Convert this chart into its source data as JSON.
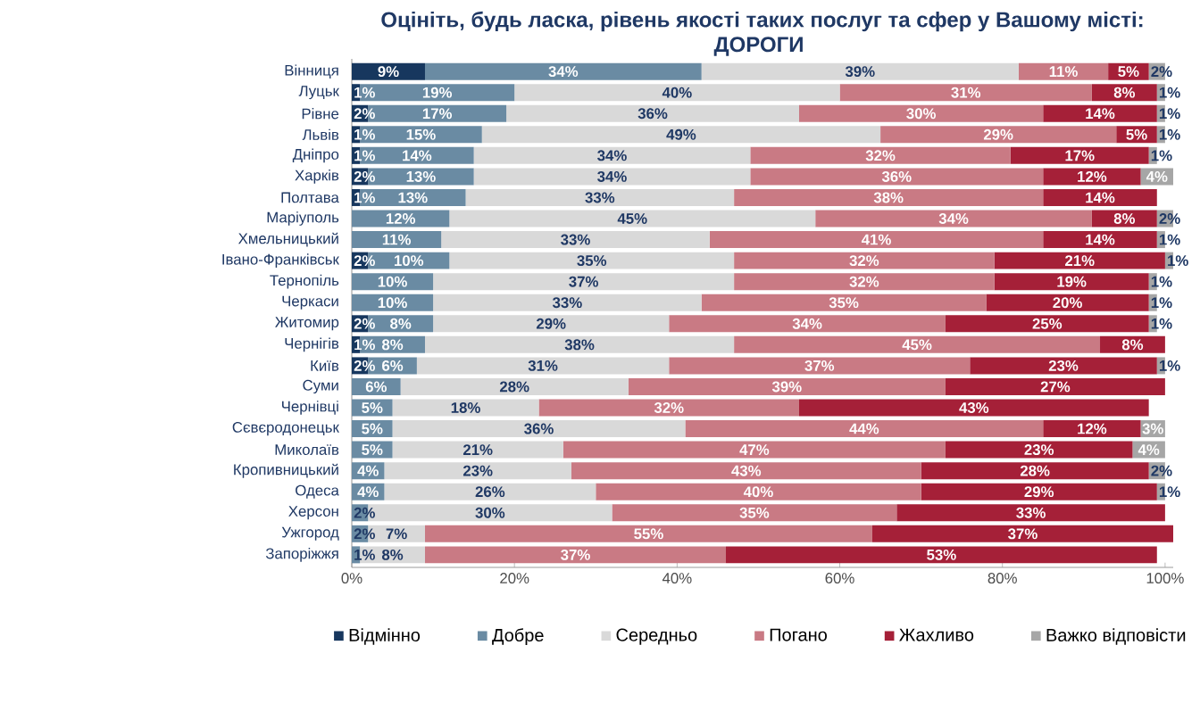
{
  "chart_data": {
    "type": "bar",
    "orientation": "horizontal",
    "stacked": true,
    "title": "Оцініть, будь ласка, рівень якості таких послуг та сфер у Вашому місті:",
    "subtitle": "ДОРОГИ",
    "categories": [
      "Вінниця",
      "Луцьк",
      "Рівне",
      "Львів",
      "Дніпро",
      "Харків",
      "Полтава",
      "Маріуполь",
      "Хмельницький",
      "Івано-Франківськ",
      "Тернопіль",
      "Черкаси",
      "Житомир",
      "Чернігів",
      "Київ",
      "Суми",
      "Чернівці",
      "Сєвєродонецьк",
      "Миколаїв",
      "Кропивницький",
      "Одеса",
      "Херсон",
      "Ужгород",
      "Запоріжжя"
    ],
    "series": [
      {
        "name": "Відмінно",
        "color": "#17375e",
        "values": [
          9,
          1,
          2,
          1,
          1,
          2,
          1,
          null,
          null,
          2,
          null,
          null,
          2,
          1,
          2,
          null,
          null,
          null,
          null,
          null,
          null,
          null,
          null,
          null
        ],
        "value_labels": [
          "9%",
          "1%",
          "2%",
          "1%",
          "1%",
          "2%",
          "1%",
          null,
          null,
          "2%",
          null,
          null,
          "2%",
          "1%",
          "2%",
          null,
          null,
          null,
          null,
          null,
          null,
          null,
          null,
          null
        ]
      },
      {
        "name": "Добре",
        "color": "#6a8ba3",
        "values": [
          34,
          19,
          17,
          15,
          14,
          13,
          13,
          12,
          11,
          10,
          10,
          10,
          8,
          8,
          6,
          6,
          5,
          5,
          5,
          4,
          4,
          2,
          2,
          1
        ],
        "value_labels": [
          "34%",
          "19%",
          "17%",
          "15%",
          "14%",
          "13%",
          "13%",
          "12%",
          "11%",
          "10%",
          "10%",
          "10%",
          "8%",
          "8%",
          "6%",
          "6%",
          "5%",
          "5%",
          "5%",
          "4%",
          "4%",
          "2%",
          "2%",
          "1%"
        ]
      },
      {
        "name": "Середньо",
        "color": "#d9d9d9",
        "values": [
          39,
          40,
          36,
          49,
          34,
          34,
          33,
          45,
          33,
          35,
          37,
          33,
          29,
          38,
          31,
          28,
          18,
          36,
          21,
          23,
          26,
          30,
          7,
          8
        ],
        "value_labels": [
          "39%",
          "40%",
          "36%",
          "49%",
          "34%",
          "34%",
          "33%",
          "45%",
          "33%",
          "35%",
          "37%",
          "33%",
          "29%",
          "38%",
          "31%",
          "28%",
          "18%",
          "36%",
          "21%",
          "23%",
          "26%",
          "30%",
          "7%",
          "8%"
        ]
      },
      {
        "name": "Погано",
        "color": "#c97a84",
        "values": [
          11,
          31,
          30,
          29,
          32,
          36,
          38,
          34,
          41,
          32,
          32,
          35,
          34,
          45,
          37,
          39,
          32,
          44,
          47,
          43,
          40,
          35,
          55,
          37
        ],
        "value_labels": [
          "11%",
          "31%",
          "30%",
          "29%",
          "32%",
          "36%",
          "38%",
          "34%",
          "41%",
          "32%",
          "32%",
          "35%",
          "34%",
          "45%",
          "37%",
          "39%",
          "32%",
          "44%",
          "47%",
          "43%",
          "40%",
          "35%",
          "55%",
          "37%"
        ]
      },
      {
        "name": "Жахливо",
        "color": "#a52038",
        "values": [
          5,
          8,
          14,
          5,
          17,
          12,
          14,
          8,
          14,
          21,
          19,
          20,
          25,
          8,
          23,
          27,
          43,
          12,
          23,
          28,
          29,
          33,
          37,
          53
        ],
        "value_labels": [
          "5%",
          "8%",
          "14%",
          "5%",
          "17%",
          "12%",
          "14%",
          "8%",
          "14%",
          "21%",
          "19%",
          "20%",
          "25%",
          "8%",
          "23%",
          "27%",
          "43%",
          "12%",
          "23%",
          "28%",
          "29%",
          "33%",
          "37%",
          "53%"
        ]
      },
      {
        "name": "Важко відповісти",
        "color": "#a6a6a6",
        "values": [
          2,
          1,
          1,
          1,
          1,
          4,
          null,
          2,
          1,
          1,
          1,
          1,
          1,
          null,
          1,
          null,
          null,
          3,
          4,
          2,
          1,
          null,
          null,
          null
        ],
        "value_labels": [
          "2%",
          "1%",
          "1%",
          "1%",
          "1%",
          "4%",
          null,
          "2%",
          "1%",
          "1%",
          "1%",
          "1%",
          "1%",
          null,
          "1%",
          null,
          null,
          "3%",
          "4%",
          "2%",
          "1%",
          null,
          null,
          null
        ]
      }
    ],
    "xlim": [
      0,
      101
    ],
    "xticks": [
      {
        "value": 0,
        "label": "0%"
      },
      {
        "value": 20,
        "label": "20%"
      },
      {
        "value": 40,
        "label": "40%"
      },
      {
        "value": 60,
        "label": "60%"
      },
      {
        "value": 80,
        "label": "80%"
      },
      {
        "value": 100,
        "label": "100%"
      }
    ],
    "legend": "bottom"
  }
}
